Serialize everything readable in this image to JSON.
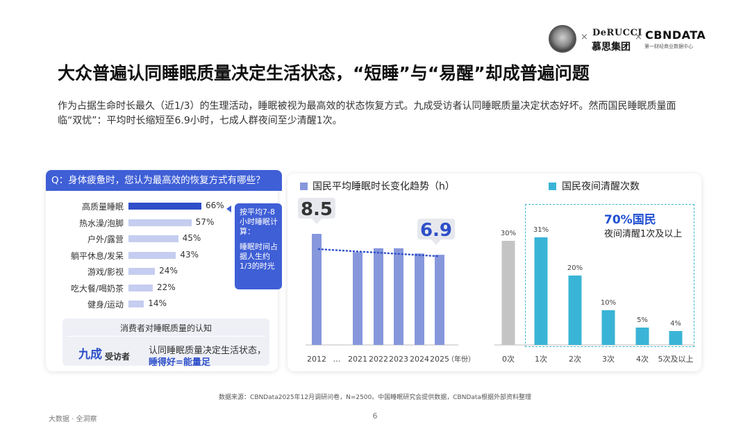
{
  "header": {
    "logo_derucci_top": "DeRUCCI",
    "logo_derucci_bottom": "慕思集团",
    "logo_cbn_top": "CBNDATA",
    "logo_cbn_bottom": "第一财经商业数据中心",
    "separator": "×"
  },
  "title": "大众普遍认同睡眠质量决定生活状态，“短睡”与“易醒”却成普遍问题",
  "intro": "作为占据生命时长最久（近1/3）的生理活动，睡眠被视为最高效的状态恢复方式。九成受访者认同睡眠质量决定状态好坏。然而国民睡眠质量面临“双忧”：平均时长缩短至6.9小时，七成人群夜间至少清醒1次。",
  "panel1": {
    "question": "Q：身体疲惫时，您认为最高效的恢复方式有哪些？",
    "callout_a": "按平均7-8小时睡眠计算：",
    "callout_b": "睡眠时间占据人生约1/3的时光",
    "recognition_title": "消费者对睡眠质量的认知",
    "recognition_big": "九成",
    "recognition_small": "受访者",
    "recognition_desc1": "认同睡眠质量决定生活状态，",
    "recognition_desc2": "睡得好=能量足"
  },
  "chart_data": [
    {
      "type": "bar",
      "orientation": "horizontal",
      "categories": [
        "高质量睡眠",
        "热水澡/泡脚",
        "户外/露营",
        "躺平休息/发呆",
        "游戏/影视",
        "吃大餐/喝奶茶",
        "健身/运动"
      ],
      "values": [
        66,
        57,
        45,
        43,
        24,
        22,
        14
      ],
      "value_labels": [
        "66%",
        "57%",
        "45%",
        "43%",
        "24%",
        "22%",
        "14%"
      ],
      "unit": "%",
      "colors": {
        "highlight": "#2e4fc9",
        "default": "#c5cdf0"
      }
    },
    {
      "type": "bar",
      "title": "国民平均睡眠时长变化趋势（h）",
      "categories": [
        "2012",
        "…",
        "2021",
        "2022",
        "2023",
        "2024",
        "2025"
      ],
      "values": [
        8.5,
        null,
        7.1,
        7.4,
        7.4,
        7.0,
        6.9
      ],
      "value_labels": [
        {
          "category": "2012",
          "label": "8.5"
        },
        {
          "category": "2025",
          "label": "6.9"
        }
      ],
      "x_unit_label": "（年份）",
      "trend_line": {
        "from": "2012",
        "to": "2025",
        "style": "dotted"
      },
      "ylim": [
        0,
        9
      ],
      "colors": {
        "bar": "#8797dc",
        "trend": "#2e4fc9",
        "legend": "#8797dc"
      }
    },
    {
      "type": "bar",
      "title": "国民夜间清醒次数",
      "categories": [
        "0次",
        "1次",
        "2次",
        "3次",
        "4次",
        "5次及以上"
      ],
      "values": [
        30,
        31,
        20,
        10,
        5,
        4
      ],
      "value_labels": [
        "30%",
        "31%",
        "20%",
        "10%",
        "5%",
        "4%"
      ],
      "unit": "%",
      "ylim": [
        0,
        35
      ],
      "highlight": {
        "pct": "70%国民",
        "text": "夜间清醒1次及以上"
      },
      "colors": {
        "first": "#c4c4c4",
        "bar": "#3ab4d6",
        "legend": "#3ab4d6"
      }
    }
  ],
  "footer": {
    "source": "数据来源：CBNData2025年12月调研问卷，N=2500。中国睡眠研究会提供数据，CBNData根据外部资料整理",
    "left": "大数据 · 全洞察",
    "page": "6"
  }
}
